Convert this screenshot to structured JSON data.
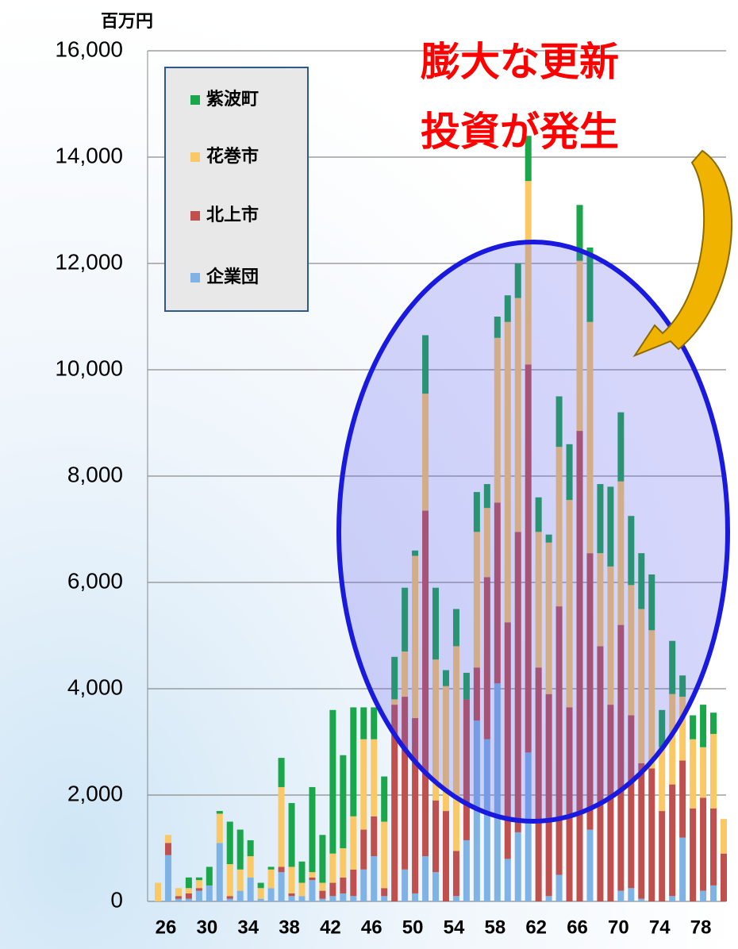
{
  "chart_data": {
    "type": "stacked_bar",
    "y_label": "百万円",
    "annotations": [
      "膨大な更新",
      "投資が発生"
    ],
    "categories": [
      "26",
      null,
      null,
      null,
      "30",
      null,
      null,
      null,
      "34",
      null,
      null,
      null,
      "38",
      null,
      null,
      null,
      "42",
      null,
      null,
      null,
      "46",
      null,
      null,
      null,
      "50",
      null,
      null,
      null,
      "54",
      null,
      null,
      null,
      "58",
      null,
      null,
      null,
      "62",
      null,
      null,
      null,
      "66",
      null,
      null,
      null,
      "70",
      null,
      null,
      null,
      "74",
      null,
      null,
      null,
      "78",
      null,
      null,
      null
    ],
    "series": [
      {
        "name": "企業団",
        "color": "#7fb2e5",
        "values": [
          0,
          870,
          50,
          50,
          200,
          300,
          1100,
          50,
          200,
          450,
          50,
          250,
          550,
          100,
          100,
          400,
          50,
          100,
          150,
          100,
          600,
          850,
          100,
          0,
          600,
          150,
          850,
          550,
          0,
          100,
          1150,
          3400,
          3050,
          4100,
          800,
          1300,
          2800,
          0,
          100,
          500,
          0,
          0,
          1350,
          0,
          0,
          200,
          250,
          50,
          0,
          0,
          100,
          1200,
          0,
          200,
          300,
          0
        ]
      },
      {
        "name": "北上市",
        "color": "#c0504d",
        "values": [
          0,
          230,
          50,
          100,
          50,
          0,
          0,
          50,
          0,
          0,
          0,
          0,
          100,
          50,
          0,
          50,
          150,
          250,
          300,
          500,
          750,
          750,
          150,
          3700,
          3250,
          3300,
          6500,
          1350,
          1700,
          850,
          2650,
          1000,
          3050,
          3400,
          4450,
          5650,
          7300,
          4400,
          3800,
          5050,
          3650,
          8850,
          5200,
          4800,
          3700,
          5000,
          3250,
          2550,
          2500,
          1700,
          2100,
          1450,
          1750,
          1750,
          1450,
          900
        ]
      },
      {
        "name": "花巻市",
        "color": "#fac864",
        "values": [
          350,
          150,
          150,
          100,
          150,
          0,
          550,
          600,
          400,
          400,
          200,
          350,
          1500,
          500,
          250,
          100,
          150,
          550,
          550,
          1000,
          1700,
          1450,
          1250,
          100,
          850,
          3050,
          2200,
          2650,
          2350,
          3850,
          0,
          2550,
          1300,
          3100,
          5650,
          4400,
          3450,
          2550,
          2850,
          3000,
          3900,
          3200,
          4350,
          1750,
          2600,
          2700,
          2450,
          2900,
          2600,
          1200,
          1700,
          1200,
          1300,
          950,
          1400,
          650
        ]
      },
      {
        "name": "紫波町",
        "color": "#1aa64a",
        "values": [
          0,
          0,
          0,
          200,
          50,
          350,
          50,
          800,
          750,
          300,
          100,
          50,
          550,
          1200,
          400,
          1600,
          900,
          2700,
          1750,
          2050,
          600,
          600,
          850,
          800,
          1200,
          100,
          1100,
          1350,
          300,
          700,
          500,
          750,
          450,
          400,
          500,
          650,
          850,
          650,
          150,
          950,
          1050,
          1050,
          1400,
          1300,
          1500,
          1300,
          1300,
          1050,
          1050,
          700,
          1000,
          400,
          450,
          800,
          400,
          0
        ]
      }
    ],
    "ylim": [
      0,
      16000
    ],
    "yticks": [
      0,
      {
        "value": 2000,
        "label": "2,000"
      },
      {
        "value": 4000,
        "label": "4,000"
      },
      {
        "value": 6000,
        "label": "6,000"
      },
      {
        "value": 8000,
        "label": "8,000"
      },
      {
        "value": 10000,
        "label": "10,000"
      },
      {
        "value": 12000,
        "label": "12,000"
      },
      {
        "value": 14000,
        "label": "14,000"
      },
      {
        "value": 16000,
        "label": "16,000"
      }
    ],
    "grid": true,
    "legend": "upper left"
  }
}
